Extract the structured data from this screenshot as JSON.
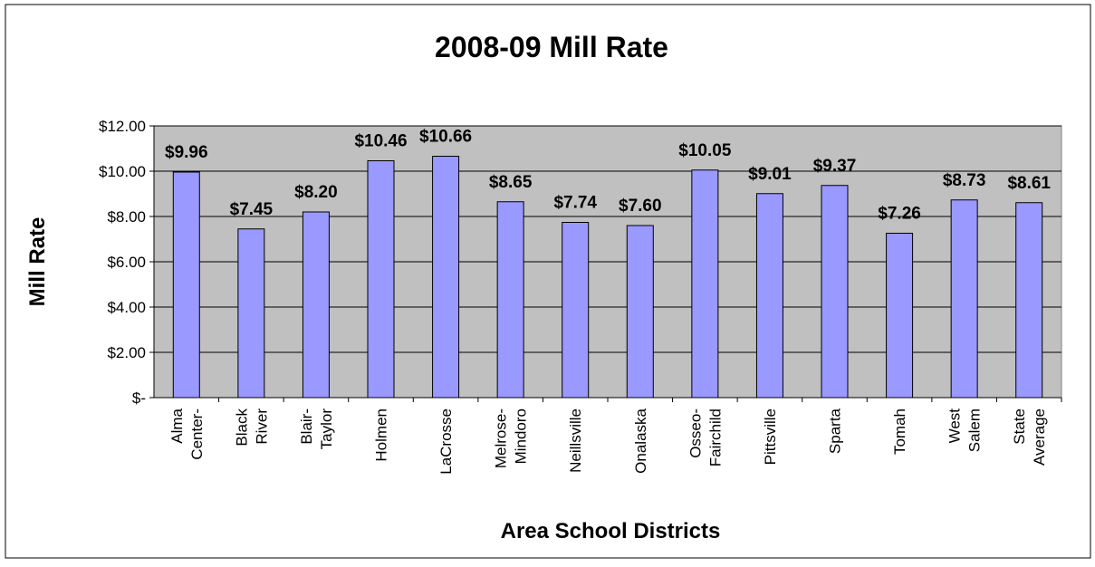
{
  "chart_data": {
    "type": "bar",
    "title": "2008-09 Mill Rate",
    "xlabel": "Area School Districts",
    "ylabel": "Mill Rate",
    "categories": [
      [
        "Alma",
        "Center-"
      ],
      [
        "Black",
        "River"
      ],
      [
        "Blair-",
        "Taylor"
      ],
      [
        "Holmen"
      ],
      [
        "LaCrosse"
      ],
      [
        "Melrose-",
        "Mindoro"
      ],
      [
        "Neillsville"
      ],
      [
        "Onalaska"
      ],
      [
        "Osseo-",
        "Fairchild"
      ],
      [
        "Pittsville"
      ],
      [
        "Sparta"
      ],
      [
        "Tomah"
      ],
      [
        "West",
        "Salem"
      ],
      [
        "State",
        "Average"
      ]
    ],
    "values": [
      9.96,
      7.45,
      8.2,
      10.46,
      10.66,
      8.65,
      7.74,
      7.6,
      10.05,
      9.01,
      9.37,
      7.26,
      8.73,
      8.61
    ],
    "data_labels": [
      "$9.96",
      "$7.45",
      "$8.20",
      "$10.46",
      "$10.66",
      "$8.65",
      "$7.74",
      "$7.60",
      "$10.05",
      "$9.01",
      "$9.37",
      "$7.26",
      "$8.73",
      "$8.61"
    ],
    "yticks": [
      0,
      2,
      4,
      6,
      8,
      10,
      12
    ],
    "ytick_labels": [
      "$-",
      "$2.00",
      "$4.00",
      "$6.00",
      "$8.00",
      "$10.00",
      "$12.00"
    ],
    "ylim": [
      0,
      12
    ],
    "grid": true,
    "legend": "none",
    "colors": {
      "bar": "#9999FF",
      "plot_background": "#C0C0C0",
      "gridline": "#000000",
      "frame": "#000000"
    }
  }
}
